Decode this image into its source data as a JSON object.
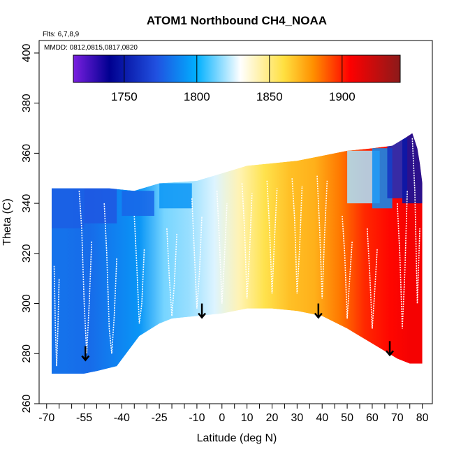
{
  "chart_data": {
    "type": "heatmap",
    "title": "ATOM1 Northbound CH4_NOAA",
    "flights_note": "Flts: 6,7,8,9",
    "dates_note": "MMDD: 0812,0815,0817,0820",
    "xlabel": "Latitude (deg N)",
    "ylabel": "Theta (C)",
    "xlim": [
      -73,
      84
    ],
    "ylim": [
      260,
      405
    ],
    "x_ticks": [
      -70,
      -55,
      -40,
      -25,
      -10,
      0,
      10,
      20,
      30,
      40,
      50,
      60,
      70,
      80
    ],
    "x_minor_ticks": [
      -65,
      -60,
      -50,
      -45,
      -35,
      -30,
      -20,
      -15,
      -5,
      5,
      15,
      25,
      35,
      45,
      55,
      65,
      75
    ],
    "y_ticks": [
      260,
      280,
      300,
      320,
      340,
      360,
      380,
      400
    ],
    "colorbar": {
      "min": 1715,
      "max": 1940,
      "ticks": [
        1750,
        1800,
        1850,
        1900
      ],
      "colors": [
        "#7a1fe0",
        "#000090",
        "#2050e0",
        "#00b0ff",
        "#ffffff",
        "#ffe040",
        "#ff9000",
        "#ff0000",
        "#8b1a1a"
      ],
      "color_stops": [
        1715,
        1740,
        1772,
        1800,
        1830,
        1860,
        1880,
        1905,
        1940
      ]
    },
    "domain_top": [
      [
        -68,
        346
      ],
      [
        -55,
        346
      ],
      [
        -45,
        346
      ],
      [
        -35,
        345
      ],
      [
        -25,
        348
      ],
      [
        -10,
        349
      ],
      [
        0,
        352
      ],
      [
        10,
        355
      ],
      [
        20,
        356
      ],
      [
        30,
        357
      ],
      [
        40,
        359
      ],
      [
        50,
        361
      ],
      [
        60,
        362
      ],
      [
        68,
        363
      ],
      [
        73,
        366
      ],
      [
        76,
        368
      ],
      [
        78,
        362
      ],
      [
        79,
        356
      ],
      [
        80,
        348
      ]
    ],
    "domain_bottom": [
      [
        -68,
        272
      ],
      [
        -55,
        272
      ],
      [
        -50,
        273
      ],
      [
        -42,
        275
      ],
      [
        -33,
        287
      ],
      [
        -25,
        292
      ],
      [
        -20,
        294
      ],
      [
        -10,
        295
      ],
      [
        0,
        296
      ],
      [
        10,
        298
      ],
      [
        20,
        298
      ],
      [
        30,
        297
      ],
      [
        40,
        295
      ],
      [
        50,
        290
      ],
      [
        60,
        284
      ],
      [
        70,
        278
      ],
      [
        75,
        276
      ],
      [
        80,
        276
      ]
    ],
    "field_cells": [
      [
        -68,
        272,
        345,
        1782
      ],
      [
        -58,
        272,
        348,
        1780
      ],
      [
        -48,
        273,
        348,
        1786
      ],
      [
        -38,
        275,
        347,
        1792
      ],
      [
        -28,
        290,
        349,
        1814
      ],
      [
        -18,
        294,
        350,
        1818
      ],
      [
        -8,
        295,
        352,
        1826
      ],
      [
        2,
        296,
        354,
        1842
      ],
      [
        12,
        298,
        356,
        1858
      ],
      [
        22,
        298,
        357,
        1868
      ],
      [
        32,
        297,
        358,
        1872
      ],
      [
        42,
        295,
        360,
        1884
      ],
      [
        52,
        290,
        361,
        1898
      ],
      [
        62,
        284,
        362,
        1904
      ],
      [
        70,
        278,
        365,
        1908
      ]
    ],
    "upper_cells": [
      [
        -68,
        330,
        346,
        1776
      ],
      [
        -55,
        332,
        346,
        1774
      ],
      [
        -40,
        335,
        345,
        1778
      ],
      [
        -25,
        338,
        348,
        1792
      ],
      [
        50,
        340,
        361,
        1820
      ],
      [
        60,
        338,
        362,
        1790
      ],
      [
        66,
        342,
        366,
        1760
      ],
      [
        72,
        340,
        368,
        1748
      ]
    ],
    "arrows": [
      [
        -54.5,
        283
      ],
      [
        -8,
        300
      ],
      [
        38.5,
        300
      ],
      [
        67,
        285
      ]
    ],
    "profiles": [
      [
        [
          -67,
          315
        ],
        [
          -66.5,
          290
        ],
        [
          -66,
          275
        ],
        [
          -65.5,
          290
        ],
        [
          -65,
          310
        ]
      ],
      [
        [
          -57,
          345
        ],
        [
          -56,
          330
        ],
        [
          -55,
          300
        ],
        [
          -54,
          280
        ],
        [
          -53,
          300
        ],
        [
          -52,
          325
        ]
      ],
      [
        [
          -47,
          340
        ],
        [
          -46,
          320
        ],
        [
          -45,
          290
        ],
        [
          -44,
          280
        ],
        [
          -43,
          295
        ],
        [
          -42,
          318
        ]
      ],
      [
        [
          -35,
          335
        ],
        [
          -34,
          315
        ],
        [
          -33,
          292
        ],
        [
          -32,
          300
        ],
        [
          -31,
          322
        ]
      ],
      [
        [
          -22,
          330
        ],
        [
          -21,
          310
        ],
        [
          -20,
          295
        ],
        [
          -19,
          308
        ],
        [
          -18,
          328
        ]
      ],
      [
        [
          -12,
          342
        ],
        [
          -11,
          320
        ],
        [
          -10,
          298
        ],
        [
          -9,
          312
        ],
        [
          -8,
          335
        ]
      ],
      [
        [
          -2,
          345
        ],
        [
          -1,
          325
        ],
        [
          0,
          300
        ],
        [
          1,
          318
        ],
        [
          2,
          340
        ]
      ],
      [
        [
          8,
          348
        ],
        [
          9,
          330
        ],
        [
          10,
          302
        ],
        [
          11,
          320
        ],
        [
          12,
          344
        ]
      ],
      [
        [
          18,
          349
        ],
        [
          19,
          330
        ],
        [
          20,
          304
        ],
        [
          21,
          326
        ],
        [
          22,
          346
        ]
      ],
      [
        [
          28,
          350
        ],
        [
          29,
          334
        ],
        [
          30,
          304
        ],
        [
          31,
          322
        ],
        [
          32,
          347
        ]
      ],
      [
        [
          38,
          351
        ],
        [
          39,
          330
        ],
        [
          40,
          302
        ],
        [
          41,
          328
        ],
        [
          42,
          349
        ]
      ],
      [
        [
          48,
          335
        ],
        [
          49,
          320
        ],
        [
          50,
          294
        ],
        [
          51,
          310
        ],
        [
          52,
          325
        ]
      ],
      [
        [
          58,
          330
        ],
        [
          59,
          312
        ],
        [
          60,
          290
        ],
        [
          61,
          305
        ],
        [
          62,
          322
        ]
      ],
      [
        [
          70,
          340
        ],
        [
          71,
          320
        ],
        [
          72,
          290
        ],
        [
          73,
          312
        ],
        [
          74,
          345
        ]
      ],
      [
        [
          76,
          366
        ],
        [
          77,
          345
        ],
        [
          78,
          300
        ],
        [
          79,
          330
        ]
      ]
    ]
  }
}
